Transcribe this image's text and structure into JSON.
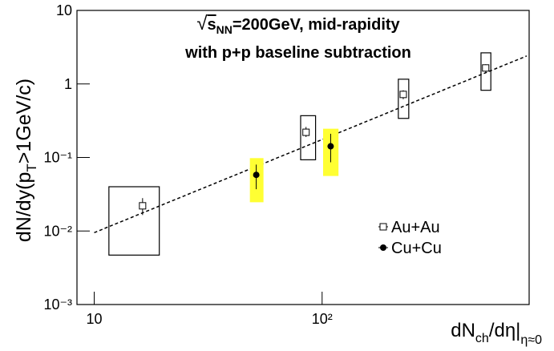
{
  "chart_data": {
    "type": "scatter",
    "title_line1": {
      "root": "√",
      "s": "s",
      "sub": "NN",
      "rest": "=200GeV, mid-rapidity"
    },
    "title_line2": "with p+p baseline subtraction",
    "y_label": {
      "main": "dN/dy(p",
      "sub": "T",
      "rest": ">1GeV/c)"
    },
    "x_label": {
      "main": "dN",
      "sub": "ch",
      "rest": "/dη|",
      "sub2": "η≈0"
    },
    "x_log": true,
    "y_log": true,
    "xlim": [
      8.4,
      810
    ],
    "ylim": [
      0.001,
      10
    ],
    "xticks": [
      10,
      {
        "value": 100,
        "label": "10²"
      }
    ],
    "yticks": [
      {
        "value": 0.001,
        "label": "10⁻³"
      },
      {
        "value": 0.01,
        "label": "10⁻²"
      },
      {
        "value": 0.1,
        "label": "10⁻¹"
      },
      1,
      10
    ],
    "legend_loc": "center right",
    "series": [
      {
        "name": "Au+Au",
        "marker": "open-square",
        "color": "#000000",
        "box_stroke": "#000000",
        "box_fill": "none",
        "x": [
          16.3,
          85,
          227,
          522
        ],
        "values": [
          0.022,
          0.22,
          0.72,
          1.65
        ],
        "err_low": [
          0.0165,
          0.19,
          0.62,
          1.45
        ],
        "err_high": [
          0.028,
          0.26,
          0.82,
          1.85
        ],
        "sys_x_low": [
          11.6,
          80.5,
          216,
          498
        ],
        "sys_x_high": [
          19.3,
          93.6,
          240,
          550
        ],
        "sys_low": [
          0.0047,
          0.093,
          0.34,
          0.82
        ],
        "sys_high": [
          0.04,
          0.37,
          1.16,
          2.65
        ]
      },
      {
        "name": "Cu+Cu",
        "marker": "filled-circle",
        "color": "#000000",
        "box_stroke": "none",
        "box_fill": "#ffff33",
        "x": [
          51.4,
          109
        ],
        "values": [
          0.058,
          0.142
        ],
        "err_low": [
          0.037,
          0.086
        ],
        "err_high": [
          0.08,
          0.21
        ],
        "sys_x_low": [
          48.2,
          101
        ],
        "sys_x_high": [
          55.3,
          118
        ],
        "sys_low": [
          0.0246,
          0.056
        ],
        "sys_high": [
          0.098,
          0.246
        ]
      }
    ],
    "fit_line": {
      "x": [
        10,
        790
      ],
      "values": [
        0.0095,
        2.4
      ],
      "color": "#000000",
      "dash": true
    }
  }
}
